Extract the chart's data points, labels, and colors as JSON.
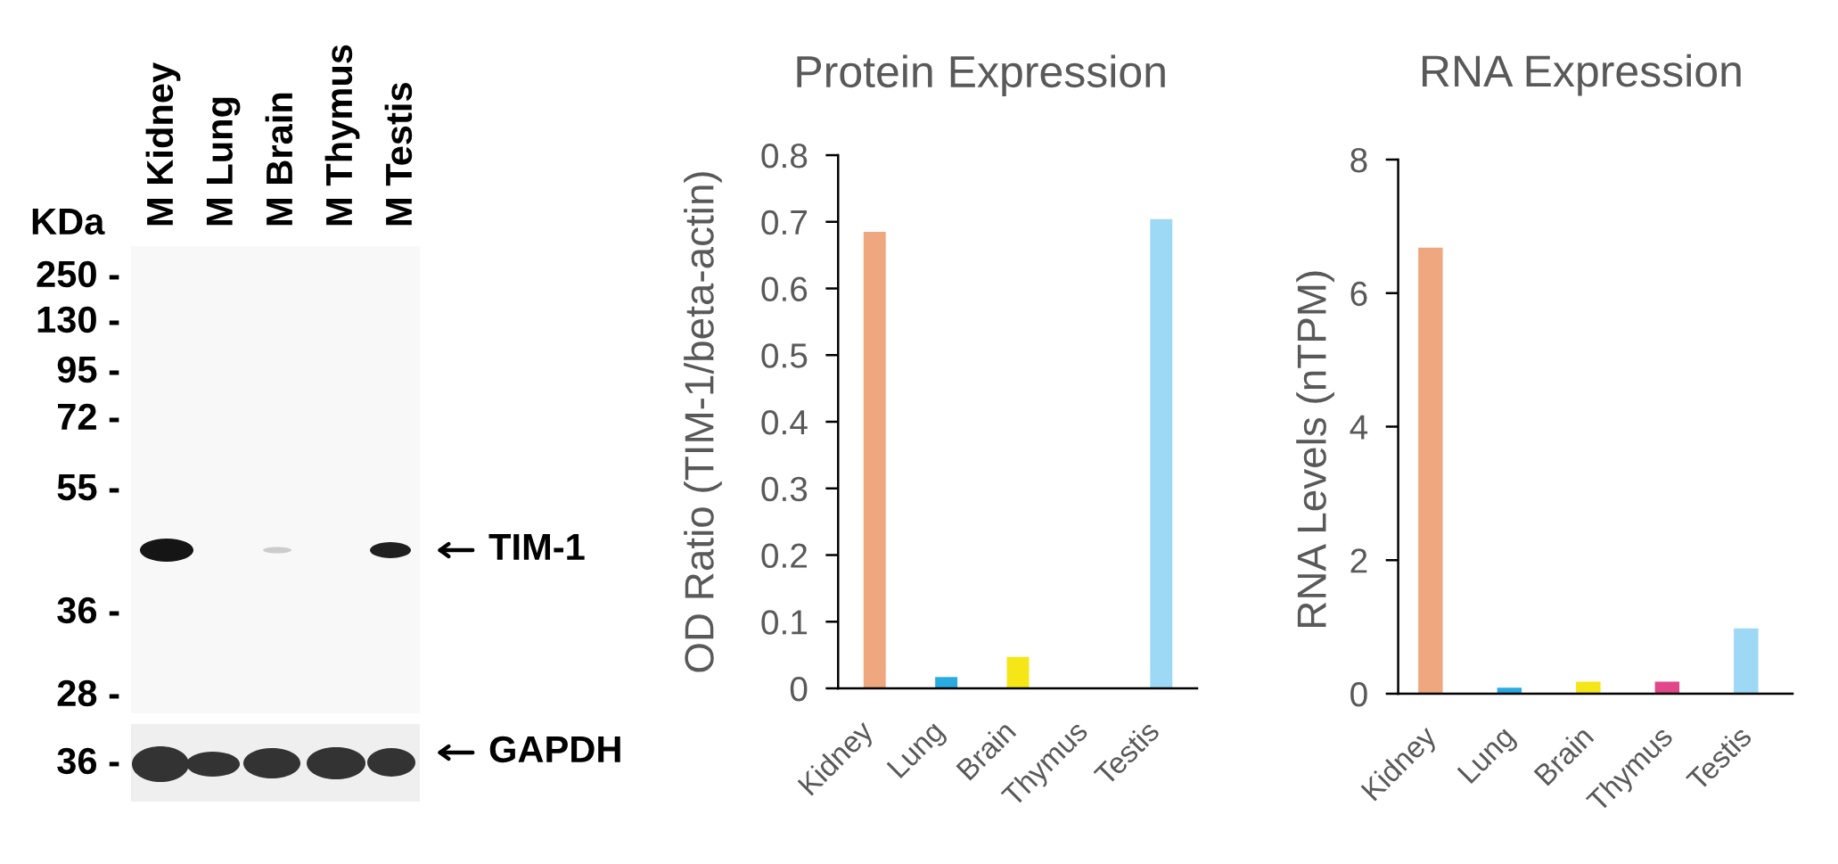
{
  "chart_data": [
    {
      "type": "other",
      "categories": [
        "M Kidney",
        "M Lung",
        "M Brain",
        "M Thymus",
        "M Testis"
      ],
      "annotations": [
        "KDa",
        "250 -",
        "130 -",
        "95 -",
        "72 -",
        "55 -",
        "36 -",
        "28 -",
        "36 -",
        "TIM-1",
        "GAPDH"
      ]
    },
    {
      "type": "bar",
      "title": "Protein Expression",
      "ylabel": "OD Ratio (TIM-1/beta-actin)",
      "categories": [
        "Kidney",
        "Lung",
        "Brain",
        "Thymus",
        "Testis"
      ],
      "values": [
        0.685,
        0.017,
        0.047,
        0,
        0.704
      ],
      "colors": [
        "#efa77f",
        "#29abe2",
        "#f5e617",
        "#e2478a",
        "#9dd8f5"
      ],
      "ylim": [
        0,
        0.8
      ],
      "yticks": [
        0,
        0.1,
        0.2,
        0.3,
        0.4,
        0.5,
        0.6,
        0.7,
        0.8
      ]
    },
    {
      "type": "bar",
      "title": "RNA Expression",
      "ylabel": "RNA Levels (nTPM)",
      "categories": [
        "Kidney",
        "Lung",
        "Brain",
        "Thymus",
        "Testis"
      ],
      "values": [
        6.68,
        0.09,
        0.18,
        0.18,
        0.98
      ],
      "colors": [
        "#efa77f",
        "#29abe2",
        "#f5e617",
        "#e2478a",
        "#9dd8f5"
      ],
      "ylim": [
        0,
        8
      ],
      "yticks": [
        0,
        2,
        4,
        6,
        8
      ]
    }
  ]
}
